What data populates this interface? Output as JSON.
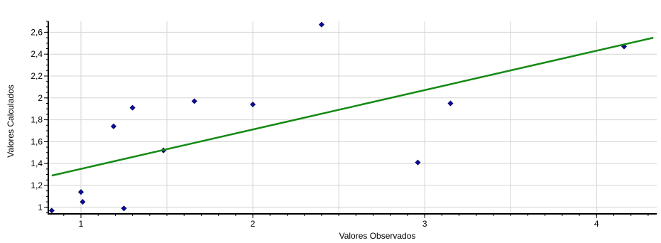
{
  "chart_data": {
    "type": "scatter",
    "title": "",
    "xlabel": "Valores Observados",
    "ylabel": "Valores Calculados",
    "xlim": [
      0.81,
      4.35
    ],
    "ylim": [
      0.94,
      2.7
    ],
    "x_ticks": [
      1,
      2,
      3,
      4
    ],
    "x_tick_labels": [
      "1",
      "2",
      "3",
      "4"
    ],
    "y_ticks": [
      1.0,
      1.2,
      1.4,
      1.6,
      1.8,
      2.0,
      2.2,
      2.4,
      2.6
    ],
    "y_tick_labels": [
      "1",
      "1,2",
      "1,4",
      "1,6",
      "1,8",
      "2",
      "2,2",
      "2,4",
      "2,6"
    ],
    "grid": true,
    "legend": "none",
    "series": [
      {
        "type": "scatter",
        "color": "#0b0b9c",
        "points": [
          {
            "x": 0.83,
            "y": 0.97
          },
          {
            "x": 1.0,
            "y": 1.14
          },
          {
            "x": 1.01,
            "y": 1.05
          },
          {
            "x": 1.19,
            "y": 1.74
          },
          {
            "x": 1.25,
            "y": 0.99
          },
          {
            "x": 1.3,
            "y": 1.91
          },
          {
            "x": 1.48,
            "y": 1.52
          },
          {
            "x": 1.66,
            "y": 1.97
          },
          {
            "x": 2.0,
            "y": 1.94
          },
          {
            "x": 2.4,
            "y": 2.67
          },
          {
            "x": 2.96,
            "y": 1.41
          },
          {
            "x": 3.15,
            "y": 1.95
          },
          {
            "x": 4.16,
            "y": 2.47
          }
        ]
      },
      {
        "type": "line",
        "color": "#138a13",
        "points": [
          {
            "x": 0.83,
            "y": 1.29
          },
          {
            "x": 4.33,
            "y": 2.55
          }
        ]
      }
    ]
  }
}
